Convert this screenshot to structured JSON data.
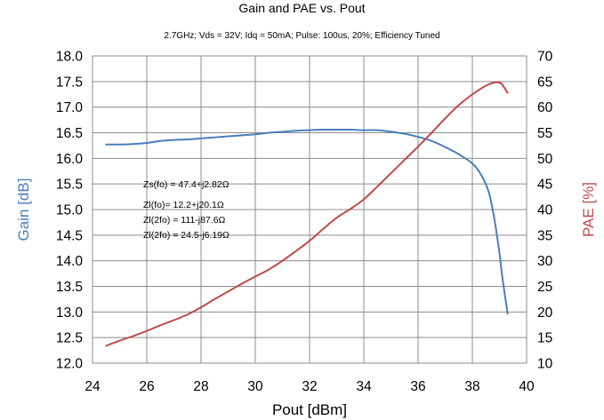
{
  "chart_data": {
    "type": "line",
    "title": "Gain and PAE vs. Pout",
    "subtitle": "2.7GHz; Vds = 32V; Idq = 50mA; Pulse: 100us, 20%; Efficiency Tuned",
    "xlabel": "Pout [dBm]",
    "ylabel_left": "Gain [dB]",
    "ylabel_right": "PAE [%]",
    "xlim": [
      24,
      40
    ],
    "xticks": [
      24,
      26,
      28,
      30,
      32,
      34,
      36,
      38,
      40
    ],
    "ylim_left": [
      12.0,
      18.0
    ],
    "yticks_left": [
      "12.0",
      "12.5",
      "13.0",
      "13.5",
      "14.0",
      "14.5",
      "15.0",
      "15.5",
      "16.0",
      "16.5",
      "17.0",
      "17.5",
      "18.0"
    ],
    "ylim_right": [
      10,
      70
    ],
    "yticks_right": [
      "10",
      "15",
      "20",
      "25",
      "30",
      "35",
      "40",
      "45",
      "50",
      "55",
      "60",
      "65",
      "70"
    ],
    "grid": true,
    "colors": {
      "gain": "#4a7ebb",
      "pae": "#be4b48"
    },
    "series": [
      {
        "axis": "left",
        "x": [
          24.5,
          25.0,
          25.5,
          26.0,
          26.5,
          27.0,
          27.5,
          28.0,
          28.5,
          29.0,
          29.5,
          30.0,
          30.5,
          31.0,
          31.5,
          32.0,
          32.5,
          33.0,
          33.5,
          34.0,
          34.5,
          35.0,
          35.5,
          36.0,
          36.5,
          37.0,
          37.5,
          38.0,
          38.3,
          38.6,
          38.8,
          39.0,
          39.1,
          39.3
        ],
        "y": [
          16.27,
          16.27,
          16.28,
          16.3,
          16.34,
          16.36,
          16.37,
          16.39,
          16.41,
          16.43,
          16.45,
          16.47,
          16.5,
          16.52,
          16.54,
          16.55,
          16.56,
          16.56,
          16.56,
          16.55,
          16.55,
          16.52,
          16.48,
          16.42,
          16.34,
          16.22,
          16.08,
          15.9,
          15.7,
          15.35,
          14.85,
          14.15,
          13.7,
          12.97
        ]
      },
      {
        "axis": "right",
        "x": [
          24.5,
          25.0,
          25.5,
          26.0,
          26.5,
          27.0,
          27.5,
          28.0,
          28.5,
          29.0,
          29.5,
          30.0,
          30.5,
          31.0,
          31.5,
          32.0,
          32.5,
          33.0,
          33.5,
          34.0,
          34.5,
          35.0,
          35.5,
          36.0,
          36.5,
          37.0,
          37.5,
          38.0,
          38.5,
          38.8,
          39.0,
          39.1,
          39.3
        ],
        "y": [
          13.4,
          14.4,
          15.3,
          16.3,
          17.4,
          18.4,
          19.5,
          20.9,
          22.5,
          24.0,
          25.5,
          26.9,
          28.3,
          30.0,
          31.9,
          33.9,
          36.2,
          38.4,
          40.1,
          42.0,
          44.5,
          47.1,
          49.7,
          52.3,
          55.0,
          57.8,
          60.4,
          62.5,
          64.2,
          64.8,
          64.8,
          64.4,
          62.8
        ]
      }
    ],
    "annotations": [
      "Zs(fo) = 47.4+j2.82Ω",
      "Zl(fo)= 12.2+j20.1Ω",
      "Zl(2fo) = 111-j87.6Ω",
      "Zl(2fo) = 24.5-j6.19Ω"
    ]
  }
}
